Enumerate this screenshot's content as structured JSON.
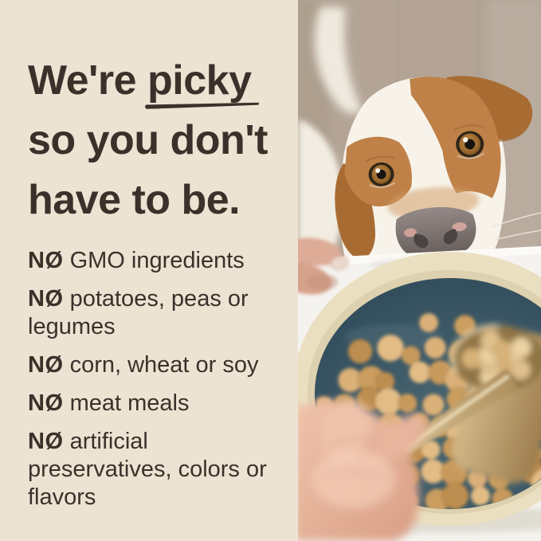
{
  "panel": {
    "background_color": "#ece3d3",
    "text_color": "#3a322a",
    "headline": {
      "line1_pre": "We're",
      "line1_emphasis": "picky",
      "line2": "so you don't",
      "line3": "have to be."
    },
    "claims": {
      "items": [
        {
          "prefix": "NØ",
          "text": "GMO ingredients"
        },
        {
          "prefix": "NØ",
          "text": "potatoes, peas or legumes"
        },
        {
          "prefix": "NØ",
          "text": "corn, wheat or soy"
        },
        {
          "prefix": "NØ",
          "text": "meat meals"
        },
        {
          "prefix": "NØ",
          "text": "artificial preservatives, colors or flavors"
        }
      ]
    }
  },
  "photo": {
    "description": "Brown-and-white dog peeking over a white table edge at a cream bowl with teal interior full of tan kibble; a hand in the foreground holds a gold measuring scoop of kibble; its white tail is raised against a taupe wood wall",
    "colors": {
      "wood_wall": "#b3a496",
      "dog_white": "#f7f3ea",
      "dog_brown": "#bf8147",
      "dog_ear_brown": "#a86c33",
      "nose_gray": "#7c7271",
      "table_white": "#f4f3ef",
      "bowl_rim": "#eadfc0",
      "bowl_teal": "#3c5866",
      "hand_skin": "#e7b7a1",
      "scoop_gold": "#c9ac7c",
      "kibble_palette": [
        "#dcb179",
        "#cb9e5e",
        "#bd8e50",
        "#e3bc85",
        "#c79a5c"
      ],
      "scoop_kibble_palette": [
        "#ecd2a2",
        "#e0c18d",
        "#d8b379"
      ]
    }
  }
}
